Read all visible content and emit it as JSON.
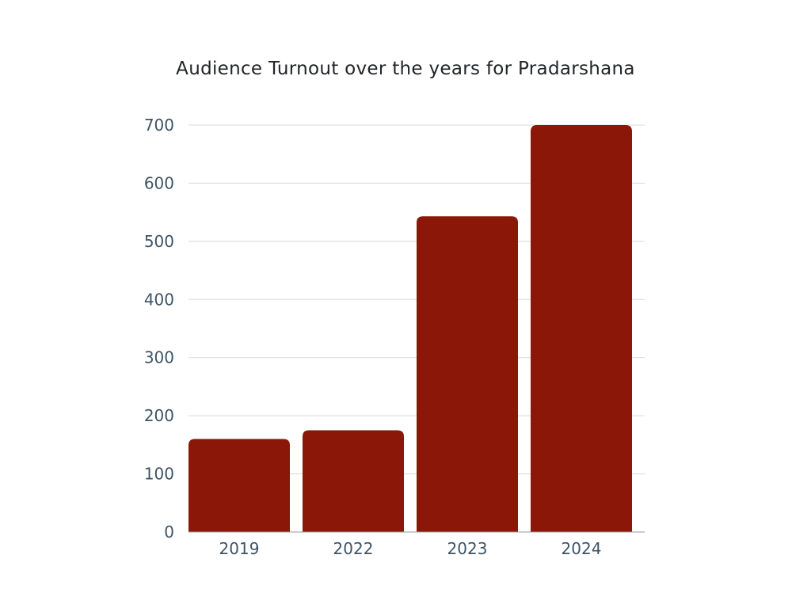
{
  "chart_data": {
    "type": "bar",
    "title": "Audience Turnout over the years for Pradarshana",
    "xlabel": "",
    "ylabel": "",
    "categories": [
      "2019",
      "2022",
      "2023",
      "2024"
    ],
    "values": [
      160,
      175,
      543,
      700
    ],
    "ylim": [
      0,
      700
    ],
    "yticks": [
      0,
      100,
      200,
      300,
      400,
      500,
      600,
      700
    ],
    "grid": true,
    "legend": "none",
    "bar_color": "#8b1708"
  }
}
